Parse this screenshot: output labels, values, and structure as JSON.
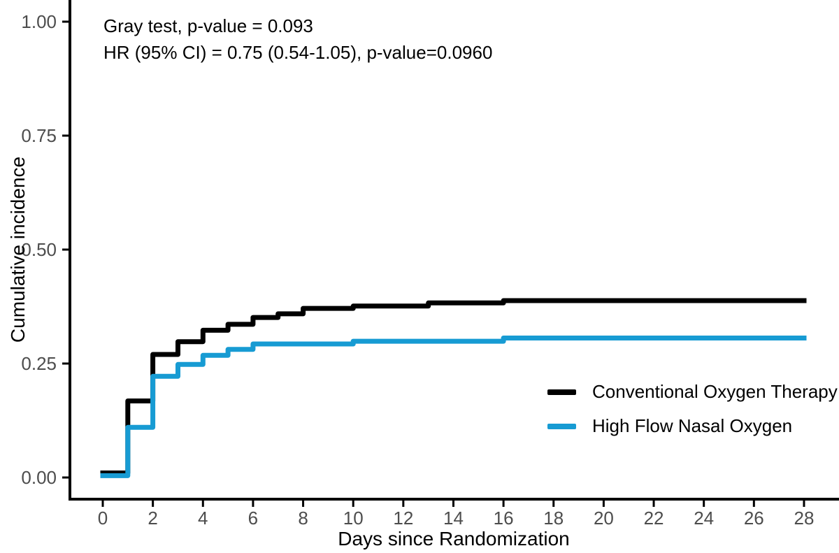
{
  "figure": {
    "background": "#ffffff",
    "text_color": "#000000",
    "tick_label_color": "#4d4d4d"
  },
  "chart_data": {
    "type": "line",
    "variant": "step (cumulative incidence curves)",
    "title": "",
    "xlabel": "Days since Randomization",
    "ylabel": "Cumulative incidence",
    "x_ticks": [
      "0",
      "2",
      "4",
      "6",
      "8",
      "10",
      "12",
      "14",
      "16",
      "18",
      "20",
      "22",
      "24",
      "26",
      "28"
    ],
    "x_tick_values": [
      0,
      2,
      4,
      6,
      8,
      10,
      12,
      14,
      16,
      18,
      20,
      22,
      24,
      26,
      28
    ],
    "y_ticks": [
      "0.00",
      "0.25",
      "0.50",
      "0.75",
      "1.00"
    ],
    "y_tick_values": [
      0,
      0.25,
      0.5,
      0.75,
      1.0
    ],
    "xlim": [
      -1.3,
      29.4
    ],
    "ylim": [
      -0.048,
      1.048
    ],
    "grid": false,
    "legend_position": "inside plot, right side lower half",
    "annotations": [
      "Gray test, p-value = 0.093",
      "HR (95% CI) = 0.75 (0.54-1.05), p-value=0.0960"
    ],
    "series": [
      {
        "name": "Conventional Oxygen Therapy",
        "color": "#000000",
        "step_points": [
          [
            0,
            0.01
          ],
          [
            1,
            0.168
          ],
          [
            2,
            0.27
          ],
          [
            3,
            0.298
          ],
          [
            4,
            0.323
          ],
          [
            5,
            0.336
          ],
          [
            6,
            0.351
          ],
          [
            7,
            0.359
          ],
          [
            8,
            0.371
          ],
          [
            10,
            0.376
          ],
          [
            13,
            0.383
          ],
          [
            16,
            0.388
          ],
          [
            28,
            0.388
          ]
        ]
      },
      {
        "name": "High Flow Nasal Oxygen",
        "color": "#179BD3",
        "step_points": [
          [
            0,
            0.004
          ],
          [
            1,
            0.11
          ],
          [
            2,
            0.222
          ],
          [
            3,
            0.248
          ],
          [
            4,
            0.268
          ],
          [
            5,
            0.281
          ],
          [
            6,
            0.293
          ],
          [
            10,
            0.299
          ],
          [
            16,
            0.306
          ],
          [
            28,
            0.306
          ]
        ]
      }
    ]
  }
}
